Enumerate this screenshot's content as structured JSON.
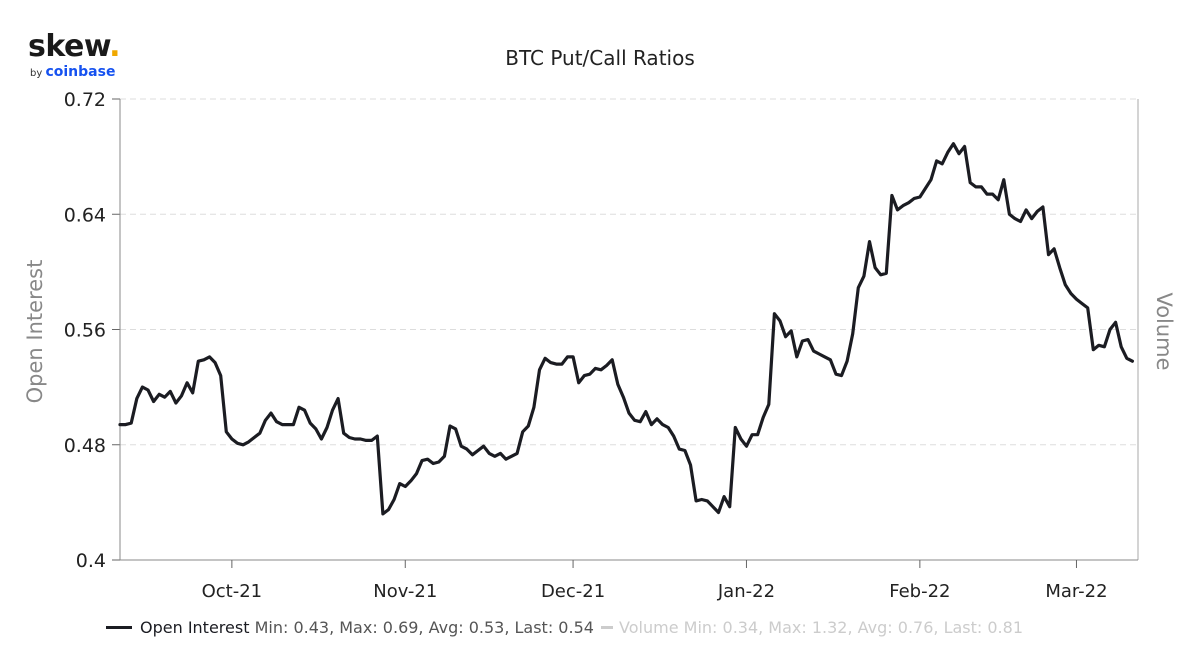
{
  "logo": {
    "wordmark": "skew",
    "by": "by",
    "brand": "coinbase"
  },
  "colors": {
    "series": "#1b1c22",
    "axis_label": "#888888",
    "grid": "#dddddd",
    "volume": "#cccccc",
    "brand_blue": "#1652f0",
    "brand_dot": "#f0a800"
  },
  "legend": {
    "oi_name": "Open Interest",
    "oi_stats": "Min: 0.43, Max: 0.69, Avg: 0.53, Last: 0.54",
    "vol_name": "Volume",
    "vol_stats": "Min: 0.34, Max: 1.32, Avg: 0.76, Last: 0.81"
  },
  "chart_data": {
    "type": "line",
    "title": "BTC Put/Call Ratios",
    "ylabel": "Open Interest",
    "ylabel_right": "Volume",
    "ylim": [
      0.4,
      0.72
    ],
    "yticks": [
      "0.72",
      "0.64",
      "0.56",
      "0.48",
      "0.4"
    ],
    "xlim": [
      "2021-09-11",
      "2022-03-12"
    ],
    "xticks": [
      {
        "date": "2021-10-01",
        "label": "Oct-21"
      },
      {
        "date": "2021-11-01",
        "label": "Nov-21"
      },
      {
        "date": "2021-12-01",
        "label": "Dec-21"
      },
      {
        "date": "2022-01-01",
        "label": "Jan-22"
      },
      {
        "date": "2022-02-01",
        "label": "Feb-22"
      },
      {
        "date": "2022-03-01",
        "label": "Mar-22"
      }
    ],
    "grid": true,
    "legend_position": "bottom",
    "series": [
      {
        "name": "Open Interest",
        "points": [
          [
            "2021-09-11",
            0.494
          ],
          [
            "2021-09-12",
            0.494
          ],
          [
            "2021-09-13",
            0.495
          ],
          [
            "2021-09-14",
            0.512
          ],
          [
            "2021-09-15",
            0.52
          ],
          [
            "2021-09-16",
            0.518
          ],
          [
            "2021-09-17",
            0.51
          ],
          [
            "2021-09-18",
            0.515
          ],
          [
            "2021-09-19",
            0.513
          ],
          [
            "2021-09-20",
            0.517
          ],
          [
            "2021-09-21",
            0.509
          ],
          [
            "2021-09-22",
            0.514
          ],
          [
            "2021-09-23",
            0.523
          ],
          [
            "2021-09-24",
            0.516
          ],
          [
            "2021-09-25",
            0.538
          ],
          [
            "2021-09-26",
            0.539
          ],
          [
            "2021-09-27",
            0.541
          ],
          [
            "2021-09-28",
            0.537
          ],
          [
            "2021-09-29",
            0.528
          ],
          [
            "2021-09-30",
            0.489
          ],
          [
            "2021-10-01",
            0.484
          ],
          [
            "2021-10-02",
            0.481
          ],
          [
            "2021-10-03",
            0.48
          ],
          [
            "2021-10-04",
            0.482
          ],
          [
            "2021-10-05",
            0.485
          ],
          [
            "2021-10-06",
            0.488
          ],
          [
            "2021-10-07",
            0.497
          ],
          [
            "2021-10-08",
            0.502
          ],
          [
            "2021-10-09",
            0.496
          ],
          [
            "2021-10-10",
            0.494
          ],
          [
            "2021-10-11",
            0.494
          ],
          [
            "2021-10-12",
            0.494
          ],
          [
            "2021-10-13",
            0.506
          ],
          [
            "2021-10-14",
            0.504
          ],
          [
            "2021-10-15",
            0.495
          ],
          [
            "2021-10-16",
            0.491
          ],
          [
            "2021-10-17",
            0.484
          ],
          [
            "2021-10-18",
            0.492
          ],
          [
            "2021-10-19",
            0.504
          ],
          [
            "2021-10-20",
            0.512
          ],
          [
            "2021-10-21",
            0.488
          ],
          [
            "2021-10-22",
            0.485
          ],
          [
            "2021-10-23",
            0.484
          ],
          [
            "2021-10-24",
            0.484
          ],
          [
            "2021-10-25",
            0.483
          ],
          [
            "2021-10-26",
            0.483
          ],
          [
            "2021-10-27",
            0.486
          ],
          [
            "2021-10-28",
            0.432
          ],
          [
            "2021-10-29",
            0.435
          ],
          [
            "2021-10-30",
            0.442
          ],
          [
            "2021-10-31",
            0.453
          ],
          [
            "2021-11-01",
            0.451
          ],
          [
            "2021-11-02",
            0.455
          ],
          [
            "2021-11-03",
            0.46
          ],
          [
            "2021-11-04",
            0.469
          ],
          [
            "2021-11-05",
            0.47
          ],
          [
            "2021-11-06",
            0.467
          ],
          [
            "2021-11-07",
            0.468
          ],
          [
            "2021-11-08",
            0.472
          ],
          [
            "2021-11-09",
            0.493
          ],
          [
            "2021-11-10",
            0.491
          ],
          [
            "2021-11-11",
            0.479
          ],
          [
            "2021-11-12",
            0.477
          ],
          [
            "2021-11-13",
            0.473
          ],
          [
            "2021-11-14",
            0.476
          ],
          [
            "2021-11-15",
            0.479
          ],
          [
            "2021-11-16",
            0.474
          ],
          [
            "2021-11-17",
            0.472
          ],
          [
            "2021-11-18",
            0.474
          ],
          [
            "2021-11-19",
            0.47
          ],
          [
            "2021-11-20",
            0.472
          ],
          [
            "2021-11-21",
            0.474
          ],
          [
            "2021-11-22",
            0.489
          ],
          [
            "2021-11-23",
            0.493
          ],
          [
            "2021-11-24",
            0.506
          ],
          [
            "2021-11-25",
            0.532
          ],
          [
            "2021-11-26",
            0.54
          ],
          [
            "2021-11-27",
            0.537
          ],
          [
            "2021-11-28",
            0.536
          ],
          [
            "2021-11-29",
            0.536
          ],
          [
            "2021-11-30",
            0.541
          ],
          [
            "2021-12-01",
            0.541
          ],
          [
            "2021-12-02",
            0.523
          ],
          [
            "2021-12-03",
            0.528
          ],
          [
            "2021-12-04",
            0.529
          ],
          [
            "2021-12-05",
            0.533
          ],
          [
            "2021-12-06",
            0.532
          ],
          [
            "2021-12-07",
            0.535
          ],
          [
            "2021-12-08",
            0.539
          ],
          [
            "2021-12-09",
            0.522
          ],
          [
            "2021-12-10",
            0.513
          ],
          [
            "2021-12-11",
            0.502
          ],
          [
            "2021-12-12",
            0.497
          ],
          [
            "2021-12-13",
            0.496
          ],
          [
            "2021-12-14",
            0.503
          ],
          [
            "2021-12-15",
            0.494
          ],
          [
            "2021-12-16",
            0.498
          ],
          [
            "2021-12-17",
            0.494
          ],
          [
            "2021-12-18",
            0.492
          ],
          [
            "2021-12-19",
            0.486
          ],
          [
            "2021-12-20",
            0.477
          ],
          [
            "2021-12-21",
            0.476
          ],
          [
            "2021-12-22",
            0.466
          ],
          [
            "2021-12-23",
            0.441
          ],
          [
            "2021-12-24",
            0.442
          ],
          [
            "2021-12-25",
            0.441
          ],
          [
            "2021-12-26",
            0.437
          ],
          [
            "2021-12-27",
            0.433
          ],
          [
            "2021-12-28",
            0.444
          ],
          [
            "2021-12-29",
            0.437
          ],
          [
            "2021-12-30",
            0.492
          ],
          [
            "2021-12-31",
            0.484
          ],
          [
            "2022-01-01",
            0.479
          ],
          [
            "2022-01-02",
            0.487
          ],
          [
            "2022-01-03",
            0.487
          ],
          [
            "2022-01-04",
            0.499
          ],
          [
            "2022-01-05",
            0.508
          ],
          [
            "2022-01-06",
            0.571
          ],
          [
            "2022-01-07",
            0.566
          ],
          [
            "2022-01-08",
            0.555
          ],
          [
            "2022-01-09",
            0.559
          ],
          [
            "2022-01-10",
            0.541
          ],
          [
            "2022-01-11",
            0.552
          ],
          [
            "2022-01-12",
            0.553
          ],
          [
            "2022-01-13",
            0.545
          ],
          [
            "2022-01-14",
            0.543
          ],
          [
            "2022-01-15",
            0.541
          ],
          [
            "2022-01-16",
            0.539
          ],
          [
            "2022-01-17",
            0.529
          ],
          [
            "2022-01-18",
            0.528
          ],
          [
            "2022-01-19",
            0.538
          ],
          [
            "2022-01-20",
            0.557
          ],
          [
            "2022-01-21",
            0.589
          ],
          [
            "2022-01-22",
            0.597
          ],
          [
            "2022-01-23",
            0.621
          ],
          [
            "2022-01-24",
            0.603
          ],
          [
            "2022-01-25",
            0.598
          ],
          [
            "2022-01-26",
            0.599
          ],
          [
            "2022-01-27",
            0.653
          ],
          [
            "2022-01-28",
            0.643
          ],
          [
            "2022-01-29",
            0.646
          ],
          [
            "2022-01-30",
            0.648
          ],
          [
            "2022-01-31",
            0.651
          ],
          [
            "2022-02-01",
            0.652
          ],
          [
            "2022-02-02",
            0.658
          ],
          [
            "2022-02-03",
            0.664
          ],
          [
            "2022-02-04",
            0.677
          ],
          [
            "2022-02-05",
            0.675
          ],
          [
            "2022-02-06",
            0.683
          ],
          [
            "2022-02-07",
            0.689
          ],
          [
            "2022-02-08",
            0.682
          ],
          [
            "2022-02-09",
            0.687
          ],
          [
            "2022-02-10",
            0.662
          ],
          [
            "2022-02-11",
            0.659
          ],
          [
            "2022-02-12",
            0.659
          ],
          [
            "2022-02-13",
            0.654
          ],
          [
            "2022-02-14",
            0.654
          ],
          [
            "2022-02-15",
            0.65
          ],
          [
            "2022-02-16",
            0.664
          ],
          [
            "2022-02-17",
            0.64
          ],
          [
            "2022-02-18",
            0.637
          ],
          [
            "2022-02-19",
            0.635
          ],
          [
            "2022-02-20",
            0.643
          ],
          [
            "2022-02-21",
            0.637
          ],
          [
            "2022-02-22",
            0.642
          ],
          [
            "2022-02-23",
            0.645
          ],
          [
            "2022-02-24",
            0.612
          ],
          [
            "2022-02-25",
            0.616
          ],
          [
            "2022-02-26",
            0.603
          ],
          [
            "2022-02-27",
            0.591
          ],
          [
            "2022-02-28",
            0.585
          ],
          [
            "2022-03-01",
            0.581
          ],
          [
            "2022-03-02",
            0.578
          ],
          [
            "2022-03-03",
            0.575
          ],
          [
            "2022-03-04",
            0.546
          ],
          [
            "2022-03-05",
            0.549
          ],
          [
            "2022-03-06",
            0.548
          ],
          [
            "2022-03-07",
            0.56
          ],
          [
            "2022-03-08",
            0.565
          ],
          [
            "2022-03-09",
            0.548
          ],
          [
            "2022-03-10",
            0.54
          ],
          [
            "2022-03-11",
            0.538
          ]
        ]
      }
    ]
  }
}
